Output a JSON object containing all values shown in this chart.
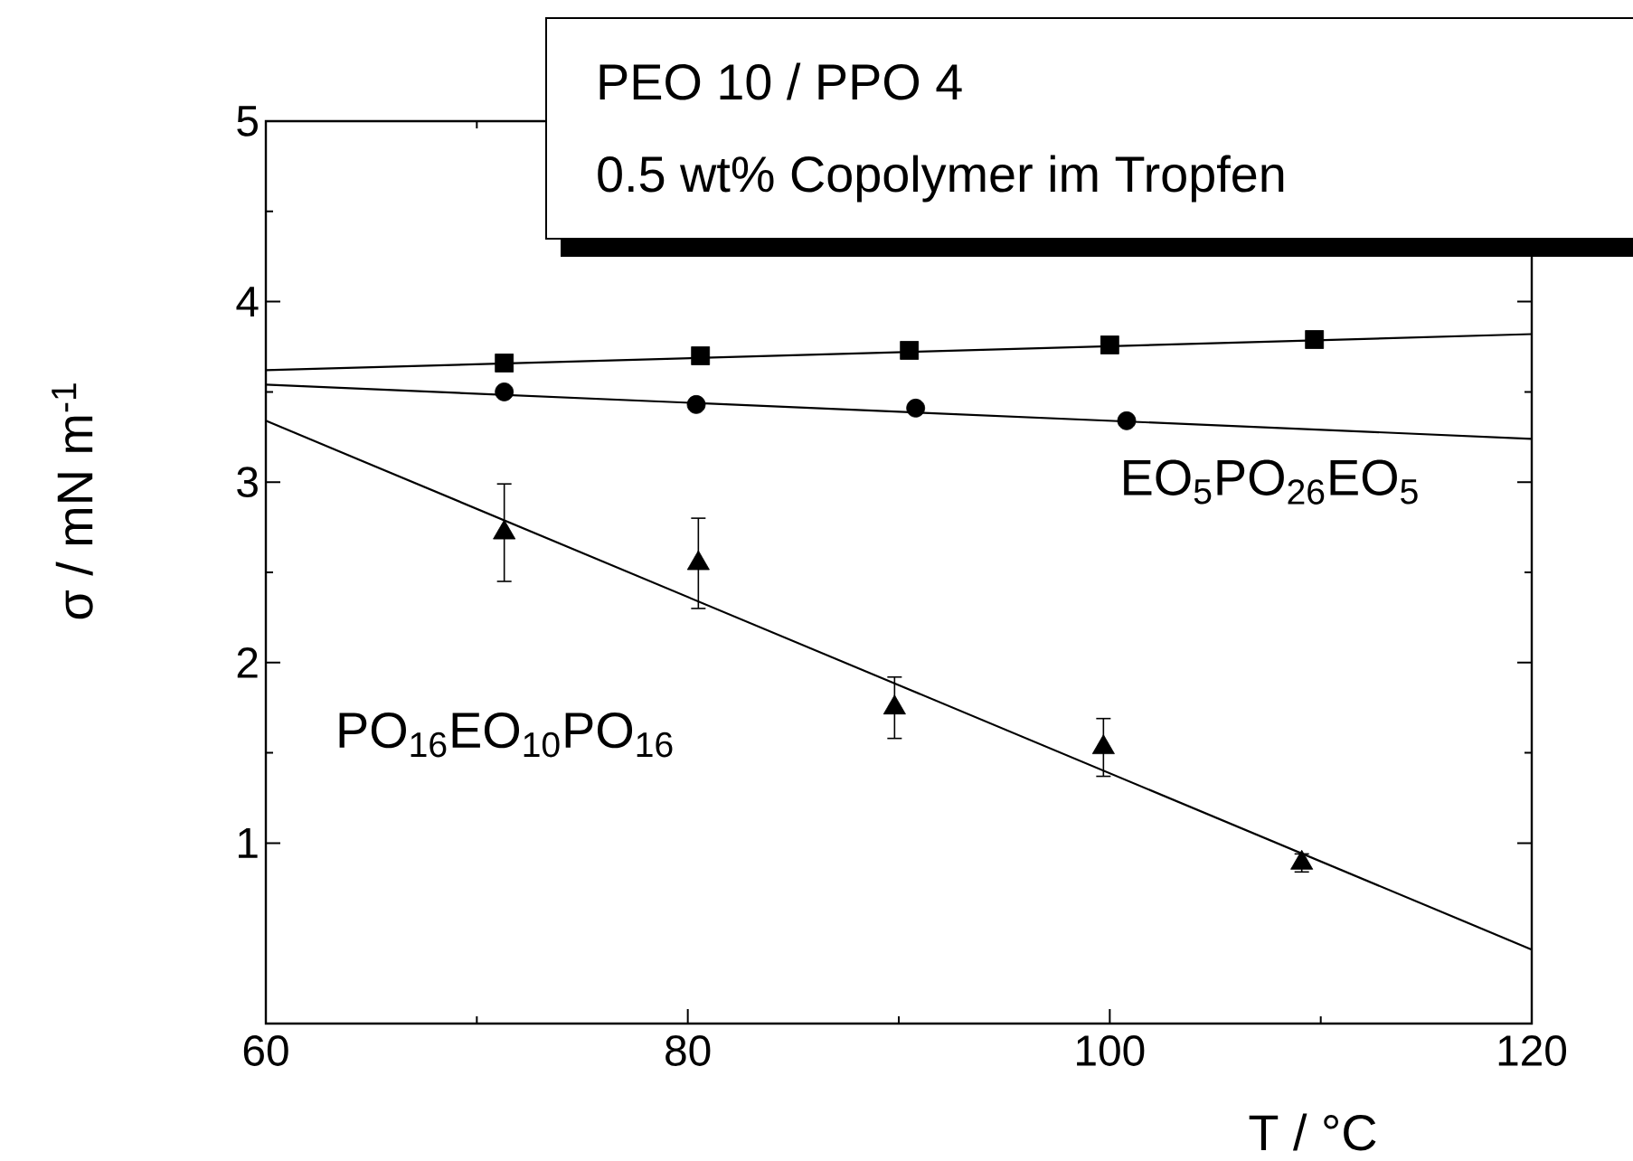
{
  "chart_data": {
    "type": "scatter",
    "title": "PEO 10 / PPO 4",
    "subtitle": "0.5 wt% Copolymer im Tropfen",
    "xlabel": "T / °C",
    "ylabel": "σ / mN m$^{-1}$",
    "xlim": [
      60,
      120
    ],
    "xticks": [
      60,
      80,
      100,
      120
    ],
    "ylim": [
      0,
      5
    ],
    "yticks": [
      1,
      2,
      3,
      4,
      5
    ],
    "grid": false,
    "annotations": [
      "EO$_{5}$PO$_{26}$EO$_{5}$",
      "PO$_{16}$EO$_{10}$PO$_{16}$"
    ],
    "series": [
      {
        "marker": "square",
        "color": "#000000",
        "x": [
          71.3,
          80.6,
          90.5,
          100,
          109.7
        ],
        "values": [
          3.66,
          3.7,
          3.73,
          3.76,
          3.79
        ]
      },
      {
        "marker": "circle",
        "color": "#000000",
        "x": [
          71.3,
          80.4,
          90.8,
          100.8
        ],
        "values": [
          3.5,
          3.43,
          3.41,
          3.34
        ]
      },
      {
        "marker": "triangle",
        "color": "#000000",
        "x": [
          71.3,
          80.5,
          89.8,
          99.7,
          109.1
        ],
        "values": [
          2.72,
          2.55,
          1.75,
          1.53,
          0.89
        ],
        "errors": [
          0.27,
          0.25,
          0.17,
          0.16,
          0.05
        ]
      },
      {
        "type": "line",
        "marker": "none",
        "color": "#000000",
        "x": [
          60,
          120
        ],
        "values": [
          3.62,
          3.82
        ]
      },
      {
        "type": "line",
        "marker": "none",
        "color": "#000000",
        "x": [
          60,
          120
        ],
        "values": [
          3.54,
          3.24
        ]
      },
      {
        "type": "line",
        "marker": "none",
        "color": "#000000",
        "x": [
          60,
          120
        ],
        "values": [
          3.34,
          0.41
        ]
      }
    ]
  }
}
